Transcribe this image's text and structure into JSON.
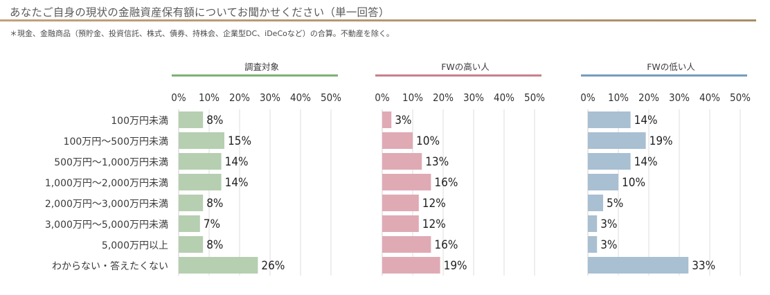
{
  "header": {
    "title": "あなたご自身の現状の金融資産保有額についてお聞かせください（単一回答）",
    "note": "＊現金、金融商品（預貯金、投資信託、株式、債券、持株会、企業型DC、iDeCoなど）の合算。不動産を除く。"
  },
  "chart_data": {
    "type": "bar",
    "orientation": "horizontal",
    "categories": [
      "100万円未満",
      "100万円～500万円未満",
      "500万円～1,000万円未満",
      "1,000万円～2,000万円未満",
      "2,000万円～3,000万円未満",
      "3,000万円～5,000万円未満",
      "5,000万円以上",
      "わからない・答えたくない"
    ],
    "xlim": [
      0,
      50
    ],
    "ticks": [
      "0%",
      "10%",
      "20%",
      "30%",
      "40%",
      "50%"
    ],
    "grid": true,
    "value_suffix": "%",
    "series": [
      {
        "name": "調査対象",
        "color": "#b5cfb0",
        "line_color": "#79ad6f",
        "values": [
          8,
          15,
          14,
          14,
          8,
          7,
          8,
          26
        ]
      },
      {
        "name": "FWの高い人",
        "color": "#dfaab4",
        "line_color": "#c77a88",
        "values": [
          3,
          10,
          13,
          16,
          12,
          12,
          16,
          19
        ]
      },
      {
        "name": "FWの低い人",
        "color": "#a9bfd2",
        "line_color": "#6f98ba",
        "values": [
          14,
          19,
          14,
          10,
          5,
          3,
          3,
          33
        ]
      }
    ]
  }
}
